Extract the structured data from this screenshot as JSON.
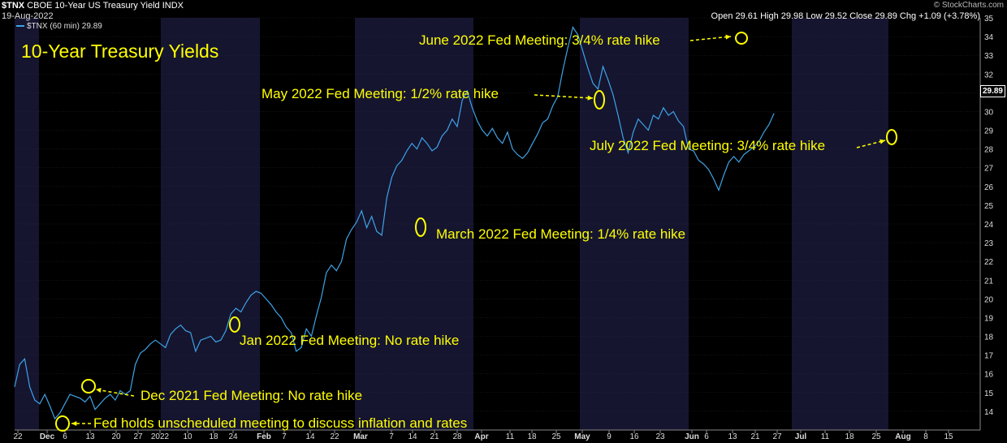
{
  "header": {
    "symbol": "$TNX",
    "description": "CBOE 10-Year US Treasury Yield INDX",
    "date": "19-Aug-2022",
    "brand": "© StockCharts.com",
    "ohlc": "Open 29.61  High 29.98  Low 29.52  Close 29.89  Chg +1.09 (+3.78%)",
    "legend": "$TNX (60 min) 29.89",
    "title": "10-Year Treasury Yields",
    "current_value": "29.89"
  },
  "colors": {
    "line": "#3ea3e6",
    "annotation": "#ffff00",
    "band_dark": "#151530",
    "grid": "#2a2a3a"
  },
  "annotations": [
    {
      "text": "June 2022 Fed Meeting: 3/4% rate hike"
    },
    {
      "text": "May 2022 Fed Meeting: 1/2% rate hike"
    },
    {
      "text": "March 2022 Fed Meeting: 1/4% rate hike"
    },
    {
      "text": "July 2022 Fed Meeting: 3/4% rate hike"
    },
    {
      "text": "Jan 2022 Fed Meeting: No rate hike"
    },
    {
      "text": "Dec 2021 Fed Meeting: No rate hike"
    },
    {
      "text": "Fed holds unscheduled meeting to discuss inflation and rates"
    }
  ],
  "chart_data": {
    "type": "line",
    "title": "10-Year Treasury Yields",
    "xlabel": "",
    "ylabel": "",
    "ylim": [
      13,
      35
    ],
    "y_ticks": [
      14,
      15,
      16,
      17,
      18,
      19,
      20,
      21,
      22,
      23,
      24,
      25,
      26,
      27,
      28,
      29,
      30,
      31,
      32,
      33,
      34,
      35
    ],
    "x_ticks": [
      "22",
      "Dec",
      "6",
      "13",
      "20",
      "27",
      "2022",
      "10",
      "18",
      "24",
      "Feb",
      "7",
      "14",
      "22",
      "Mar",
      "7",
      "14",
      "21",
      "28",
      "Apr",
      "11",
      "18",
      "25",
      "May",
      "9",
      "16",
      "23",
      "Jun",
      "6",
      "13",
      "21",
      "27",
      "Jul",
      "11",
      "18",
      "25",
      "Aug",
      "8",
      "15"
    ],
    "x_range_trading_days": [
      0,
      192
    ],
    "series": [
      {
        "name": "$TNX (60 min)",
        "points": [
          [
            0,
            15.3
          ],
          [
            1,
            16.5
          ],
          [
            2,
            16.8
          ],
          [
            3,
            15.3
          ],
          [
            4,
            14.6
          ],
          [
            5,
            14.4
          ],
          [
            6,
            14.9
          ],
          [
            7,
            14.3
          ],
          [
            8,
            13.6
          ],
          [
            9,
            13.9
          ],
          [
            10,
            14.4
          ],
          [
            11,
            14.9
          ],
          [
            12,
            14.8
          ],
          [
            13,
            14.7
          ],
          [
            14,
            14.5
          ],
          [
            15,
            14.8
          ],
          [
            16,
            14.1
          ],
          [
            17,
            14.4
          ],
          [
            18,
            14.7
          ],
          [
            19,
            14.9
          ],
          [
            20,
            14.6
          ],
          [
            21,
            15.1
          ],
          [
            22,
            14.9
          ],
          [
            23,
            15.1
          ],
          [
            24,
            16.5
          ],
          [
            25,
            17.1
          ],
          [
            26,
            17.3
          ],
          [
            27,
            17.6
          ],
          [
            28,
            17.8
          ],
          [
            29,
            17.6
          ],
          [
            30,
            17.4
          ],
          [
            31,
            18.1
          ],
          [
            32,
            18.4
          ],
          [
            33,
            18.6
          ],
          [
            34,
            18.3
          ],
          [
            35,
            18.2
          ],
          [
            36,
            17.2
          ],
          [
            37,
            17.8
          ],
          [
            38,
            17.9
          ],
          [
            39,
            18.0
          ],
          [
            40,
            17.7
          ],
          [
            41,
            17.8
          ],
          [
            42,
            18.3
          ],
          [
            43,
            19.2
          ],
          [
            44,
            19.5
          ],
          [
            45,
            19.3
          ],
          [
            46,
            19.8
          ],
          [
            47,
            20.2
          ],
          [
            48,
            20.4
          ],
          [
            49,
            20.3
          ],
          [
            50,
            20.0
          ],
          [
            51,
            19.7
          ],
          [
            52,
            19.3
          ],
          [
            53,
            19.0
          ],
          [
            54,
            18.5
          ],
          [
            55,
            18.2
          ],
          [
            56,
            17.2
          ],
          [
            57,
            17.4
          ],
          [
            58,
            18.4
          ],
          [
            59,
            18.0
          ],
          [
            60,
            19.1
          ],
          [
            61,
            20.1
          ],
          [
            62,
            21.4
          ],
          [
            63,
            21.8
          ],
          [
            64,
            21.5
          ],
          [
            65,
            22.0
          ],
          [
            66,
            23.2
          ],
          [
            67,
            23.7
          ],
          [
            68,
            24.1
          ],
          [
            69,
            24.7
          ],
          [
            70,
            23.8
          ],
          [
            71,
            24.4
          ],
          [
            72,
            23.6
          ],
          [
            73,
            23.4
          ],
          [
            74,
            25.4
          ],
          [
            75,
            26.5
          ],
          [
            76,
            27.1
          ],
          [
            77,
            27.4
          ],
          [
            78,
            27.9
          ],
          [
            79,
            28.3
          ],
          [
            80,
            28.0
          ],
          [
            81,
            28.6
          ],
          [
            82,
            28.3
          ],
          [
            83,
            27.9
          ],
          [
            84,
            28.1
          ],
          [
            85,
            28.7
          ],
          [
            86,
            29.0
          ],
          [
            87,
            29.6
          ],
          [
            88,
            29.2
          ],
          [
            89,
            30.6
          ],
          [
            90,
            31.1
          ],
          [
            91,
            30.2
          ],
          [
            92,
            29.5
          ],
          [
            93,
            29.0
          ],
          [
            94,
            28.7
          ],
          [
            95,
            29.1
          ],
          [
            96,
            28.6
          ],
          [
            97,
            28.3
          ],
          [
            98,
            28.9
          ],
          [
            99,
            28.0
          ],
          [
            100,
            27.7
          ],
          [
            101,
            27.5
          ],
          [
            102,
            27.8
          ],
          [
            103,
            28.3
          ],
          [
            104,
            28.8
          ],
          [
            105,
            29.4
          ],
          [
            106,
            29.6
          ],
          [
            107,
            30.3
          ],
          [
            108,
            30.8
          ],
          [
            109,
            32.2
          ],
          [
            110,
            33.4
          ],
          [
            111,
            34.5
          ],
          [
            112,
            34.1
          ],
          [
            113,
            33.2
          ],
          [
            114,
            32.3
          ],
          [
            115,
            31.5
          ],
          [
            116,
            31.2
          ],
          [
            117,
            32.4
          ],
          [
            118,
            31.7
          ],
          [
            119,
            30.9
          ],
          [
            120,
            29.8
          ],
          [
            121,
            28.6
          ],
          [
            122,
            27.8
          ],
          [
            123,
            28.9
          ],
          [
            124,
            29.6
          ],
          [
            125,
            29.3
          ],
          [
            126,
            29.0
          ],
          [
            127,
            29.8
          ],
          [
            128,
            29.6
          ],
          [
            129,
            30.2
          ],
          [
            130,
            29.8
          ],
          [
            131,
            30.0
          ],
          [
            132,
            29.5
          ],
          [
            133,
            29.2
          ],
          [
            134,
            28.0
          ],
          [
            135,
            27.9
          ],
          [
            136,
            27.4
          ],
          [
            137,
            27.2
          ],
          [
            138,
            26.9
          ],
          [
            139,
            26.4
          ],
          [
            140,
            25.8
          ],
          [
            141,
            26.6
          ],
          [
            142,
            27.3
          ],
          [
            143,
            27.6
          ],
          [
            144,
            27.3
          ],
          [
            145,
            27.7
          ],
          [
            146,
            27.9
          ],
          [
            147,
            28.1
          ],
          [
            148,
            28.4
          ],
          [
            149,
            28.9
          ],
          [
            150,
            29.3
          ],
          [
            151,
            29.9
          ]
        ]
      }
    ]
  }
}
